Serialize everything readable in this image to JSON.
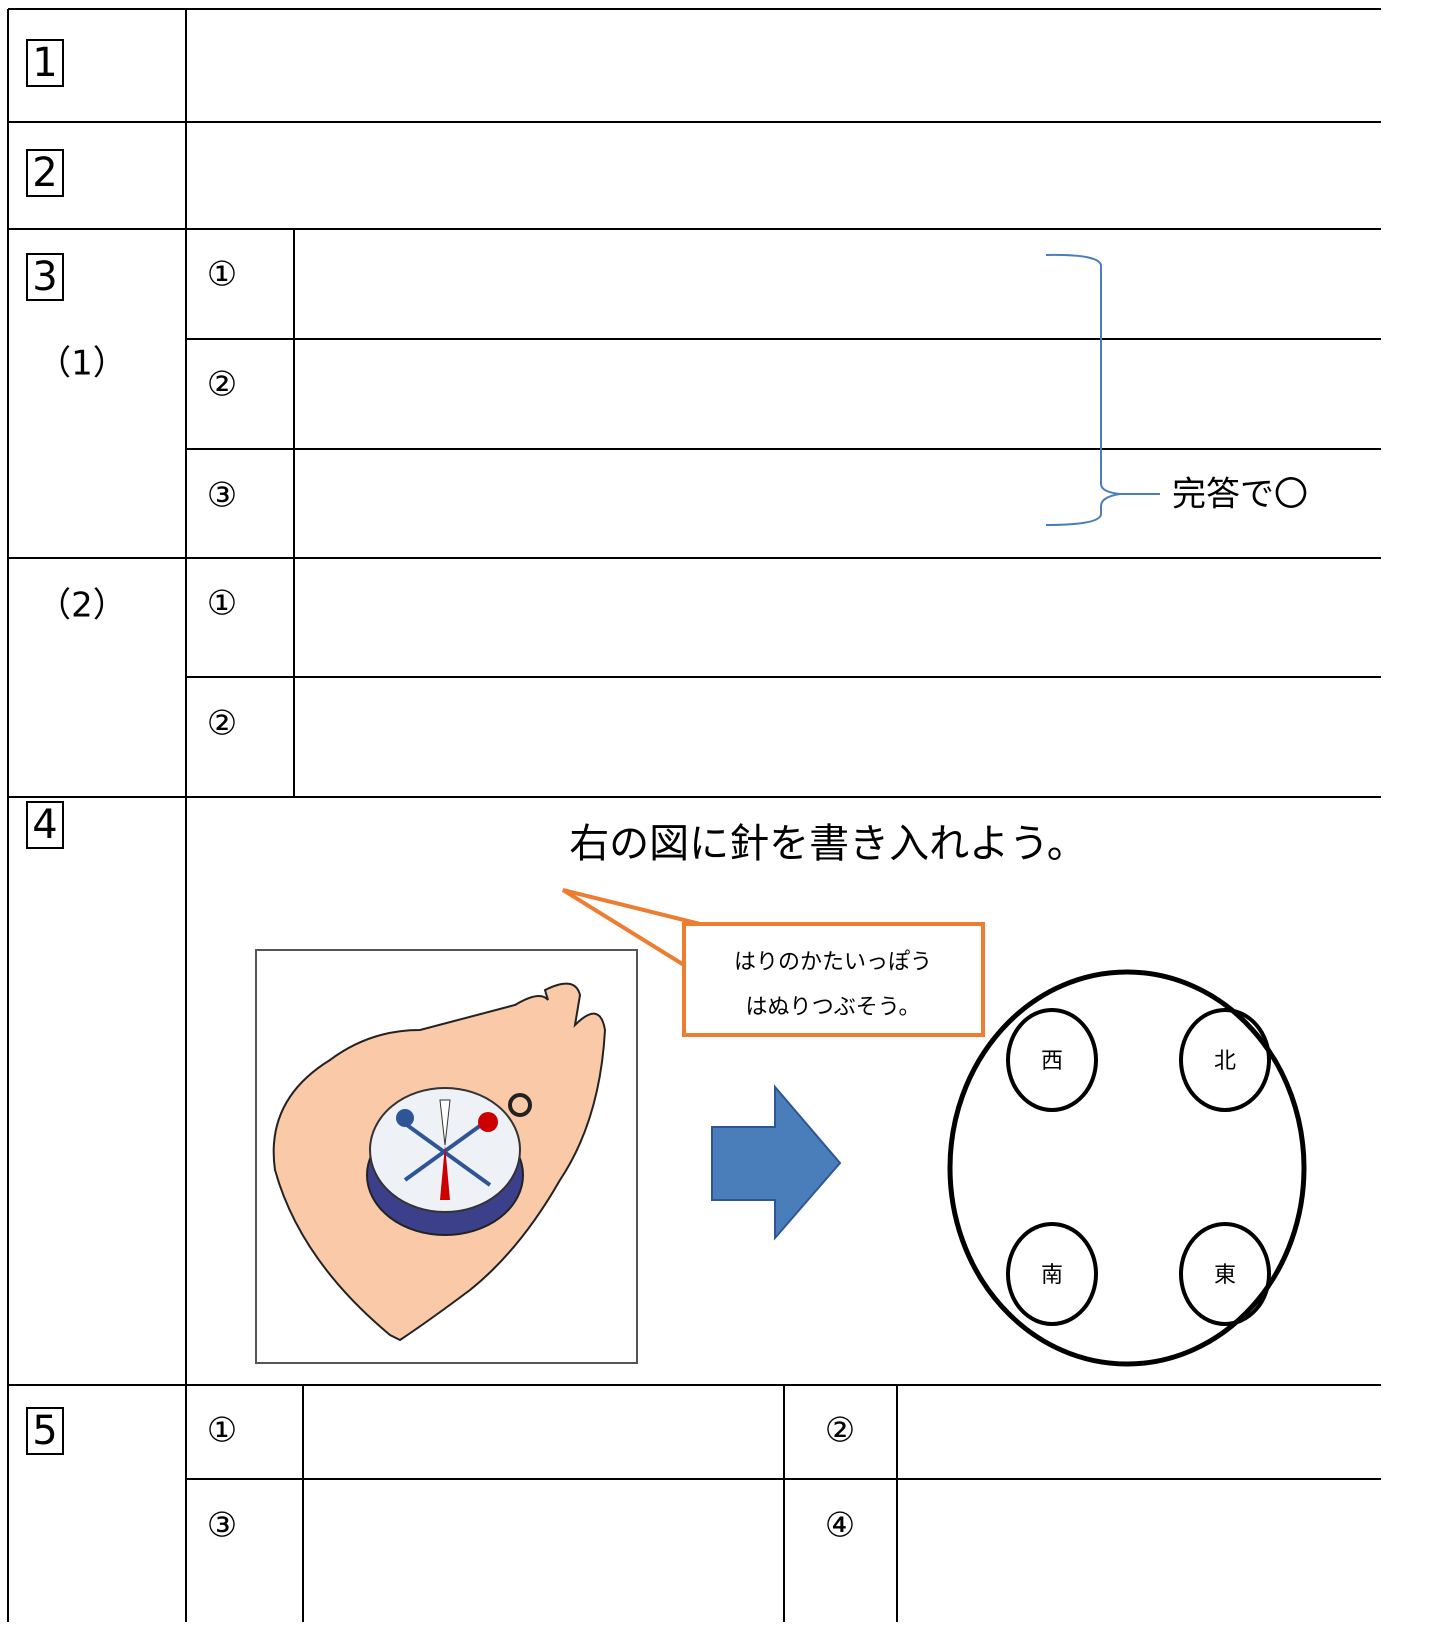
{
  "sections": [
    {
      "number": "1"
    },
    {
      "number": "2"
    },
    {
      "number": "3",
      "parts": [
        {
          "label": "（1）",
          "items": [
            "①",
            "②",
            "③"
          ],
          "note": "完答で〇"
        },
        {
          "label": "（2）",
          "items": [
            "①",
            "②"
          ]
        }
      ]
    },
    {
      "number": "4",
      "instruction": "右の図に針を書き入れよう。",
      "callout": [
        "はりのかたいっぽう",
        "はぬりつぶそう。"
      ],
      "directions": [
        "西",
        "北",
        "南",
        "東"
      ]
    },
    {
      "number": "5",
      "items": [
        "①",
        "②",
        "③",
        "④"
      ]
    }
  ]
}
